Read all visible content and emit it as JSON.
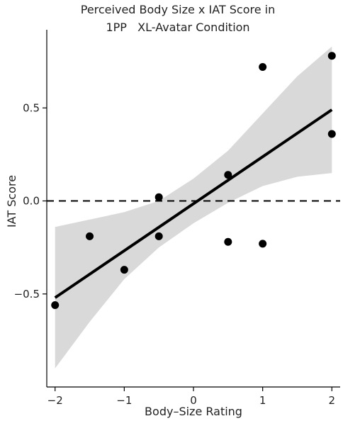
{
  "chart_data": {
    "type": "scatter",
    "title_line1": "Perceived Body Size x IAT Score in",
    "title_line2": "1PP   XL-Avatar Condition",
    "xlabel": "Body–Size Rating",
    "ylabel": "IAT Score",
    "xlim": [
      -2.12,
      2.12
    ],
    "ylim": [
      -1.0,
      0.92
    ],
    "x_ticks": [
      -2,
      -1,
      0,
      1,
      2
    ],
    "x_tick_labels": [
      "−2",
      "−1",
      "0",
      "1",
      "2"
    ],
    "y_ticks": [
      -0.5,
      0.0,
      0.5
    ],
    "y_tick_labels": [
      "−0.5",
      "0.0",
      "0.5"
    ],
    "points": [
      {
        "x": -2.0,
        "y": -0.56
      },
      {
        "x": -1.5,
        "y": -0.19
      },
      {
        "x": -1.0,
        "y": -0.37
      },
      {
        "x": -0.5,
        "y": 0.02
      },
      {
        "x": -0.5,
        "y": -0.19
      },
      {
        "x": 0.5,
        "y": 0.14
      },
      {
        "x": 0.5,
        "y": -0.22
      },
      {
        "x": 1.0,
        "y": 0.72
      },
      {
        "x": 1.0,
        "y": -0.23
      },
      {
        "x": 2.0,
        "y": 0.78
      },
      {
        "x": 2.0,
        "y": 0.36
      }
    ],
    "fit_line": {
      "x": [
        -2.0,
        2.0
      ],
      "y": [
        -0.52,
        0.49
      ]
    },
    "confidence_band": {
      "x": [
        -2.0,
        -1.5,
        -1.0,
        -0.5,
        0.0,
        0.5,
        1.0,
        1.5,
        2.0
      ],
      "lower": [
        -0.9,
        -0.65,
        -0.42,
        -0.25,
        -0.12,
        -0.01,
        0.08,
        0.13,
        0.15
      ],
      "upper": [
        -0.14,
        -0.1,
        -0.06,
        0.0,
        0.12,
        0.27,
        0.47,
        0.67,
        0.83
      ]
    },
    "reference_line_y": 0.0,
    "grid": false,
    "legend": "none",
    "colors": {
      "points": "#000000",
      "fit_line": "#000000",
      "band": "#d9d9d9",
      "reference_line": "#000000"
    }
  }
}
